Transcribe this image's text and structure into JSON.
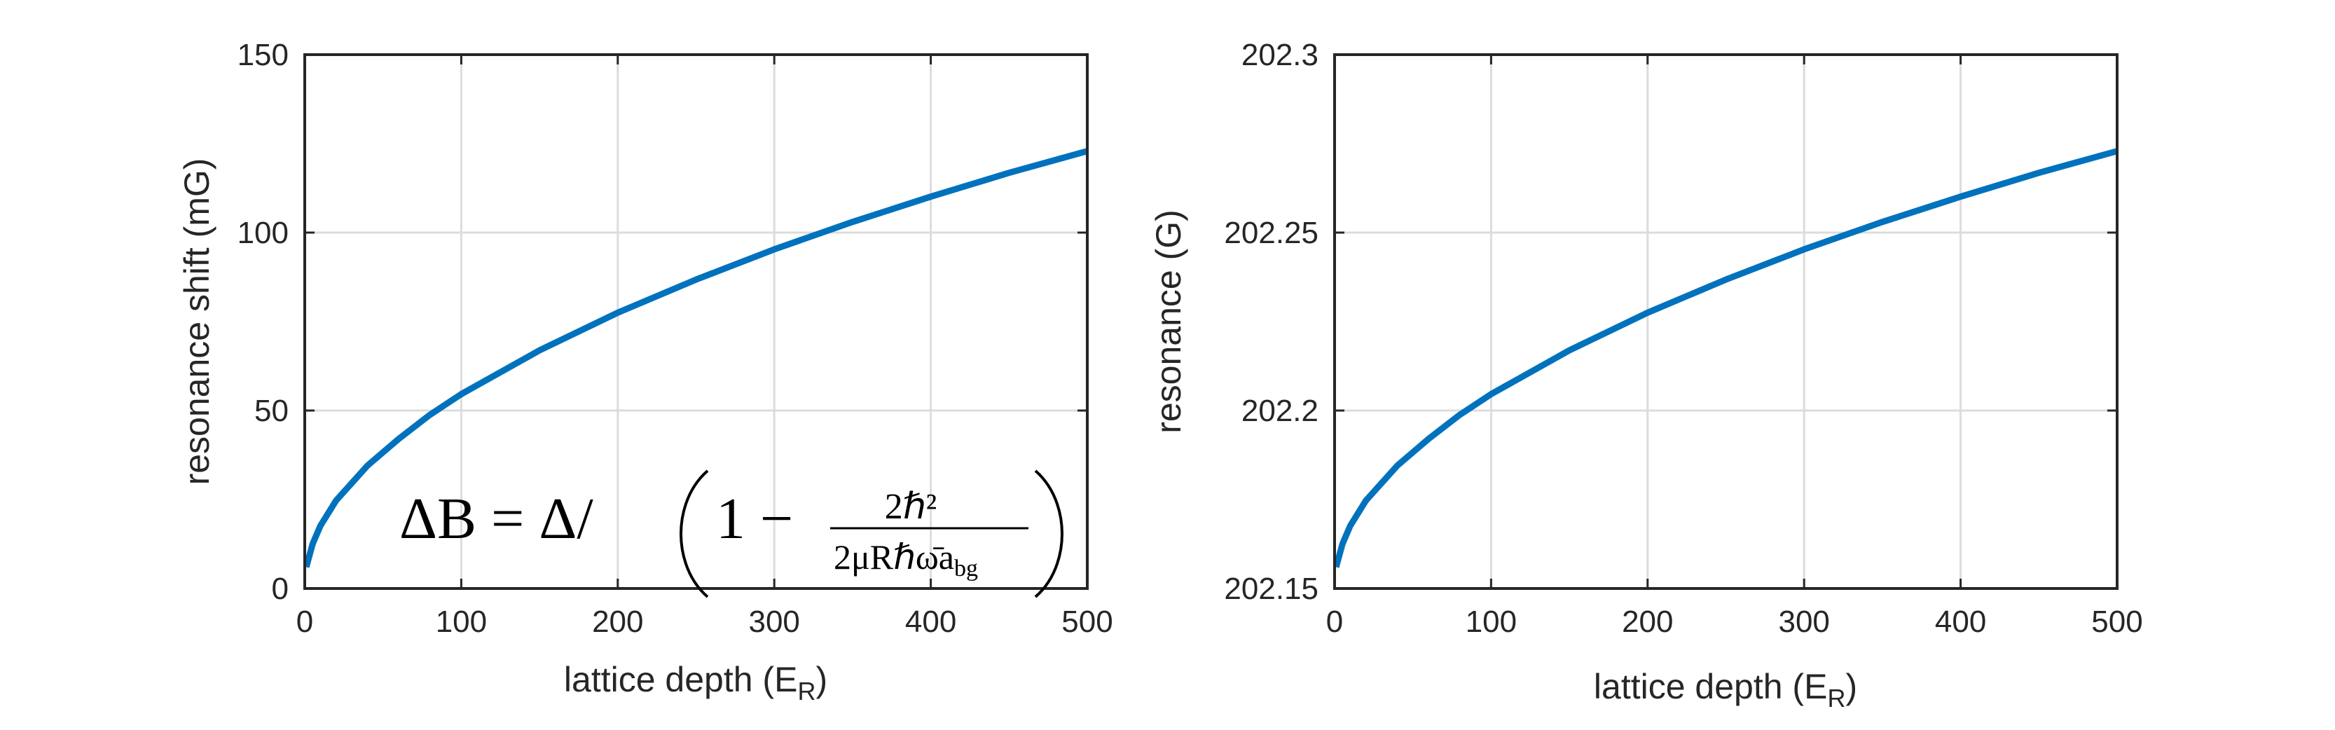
{
  "chart_data": [
    {
      "type": "line",
      "xlabel": "lattice depth (E",
      "xlabel_sub": "R",
      "xlabel_close": ")",
      "ylabel": "resonance shift (mG)",
      "xlim": [
        0,
        500
      ],
      "ylim": [
        0,
        150
      ],
      "xticks": [
        0,
        100,
        200,
        300,
        400,
        500
      ],
      "yticks": [
        0,
        50,
        100,
        150
      ],
      "xtick_labels": [
        "0",
        "100",
        "200",
        "300",
        "400",
        "500"
      ],
      "ytick_labels": [
        "0",
        "50",
        "100",
        "150"
      ],
      "grid": true,
      "series": [
        {
          "color": "#0072BD",
          "x": [
            1,
            5,
            10,
            20,
            40,
            60,
            80,
            100,
            150,
            200,
            250,
            300,
            350,
            400,
            450,
            500
          ],
          "y": [
            6,
            12.5,
            17.6,
            24.7,
            34.5,
            42,
            48.8,
            54.6,
            66.9,
            77.5,
            86.8,
            95.3,
            103,
            110.1,
            116.8,
            122.9
          ]
        }
      ],
      "annotation": {
        "lhs": "ΔB = Δ/",
        "one_minus": "1 −",
        "numerator": "2ℏ²",
        "denominator": "2μRℏω̄a",
        "denominator_sub": "bg"
      }
    },
    {
      "type": "line",
      "xlabel": "lattice depth (E",
      "xlabel_sub": "R",
      "xlabel_close": ")",
      "ylabel": "resonance (G)",
      "xlim": [
        0,
        500
      ],
      "ylim": [
        202.15,
        202.3
      ],
      "xticks": [
        0,
        100,
        200,
        300,
        400,
        500
      ],
      "yticks": [
        202.15,
        202.2,
        202.25,
        202.3
      ],
      "xtick_labels": [
        "0",
        "100",
        "200",
        "300",
        "400",
        "500"
      ],
      "ytick_labels": [
        "202.15",
        "202.2",
        "202.25",
        "202.3"
      ],
      "grid": true,
      "series": [
        {
          "color": "#0072BD",
          "x": [
            1,
            5,
            10,
            20,
            40,
            60,
            80,
            100,
            150,
            200,
            250,
            300,
            350,
            400,
            450,
            500
          ],
          "y": [
            202.156,
            202.1625,
            202.1676,
            202.1747,
            202.1845,
            202.192,
            202.1988,
            202.2046,
            202.2169,
            202.2275,
            202.2368,
            202.2453,
            202.253,
            202.2601,
            202.2668,
            202.2729
          ]
        }
      ]
    }
  ]
}
